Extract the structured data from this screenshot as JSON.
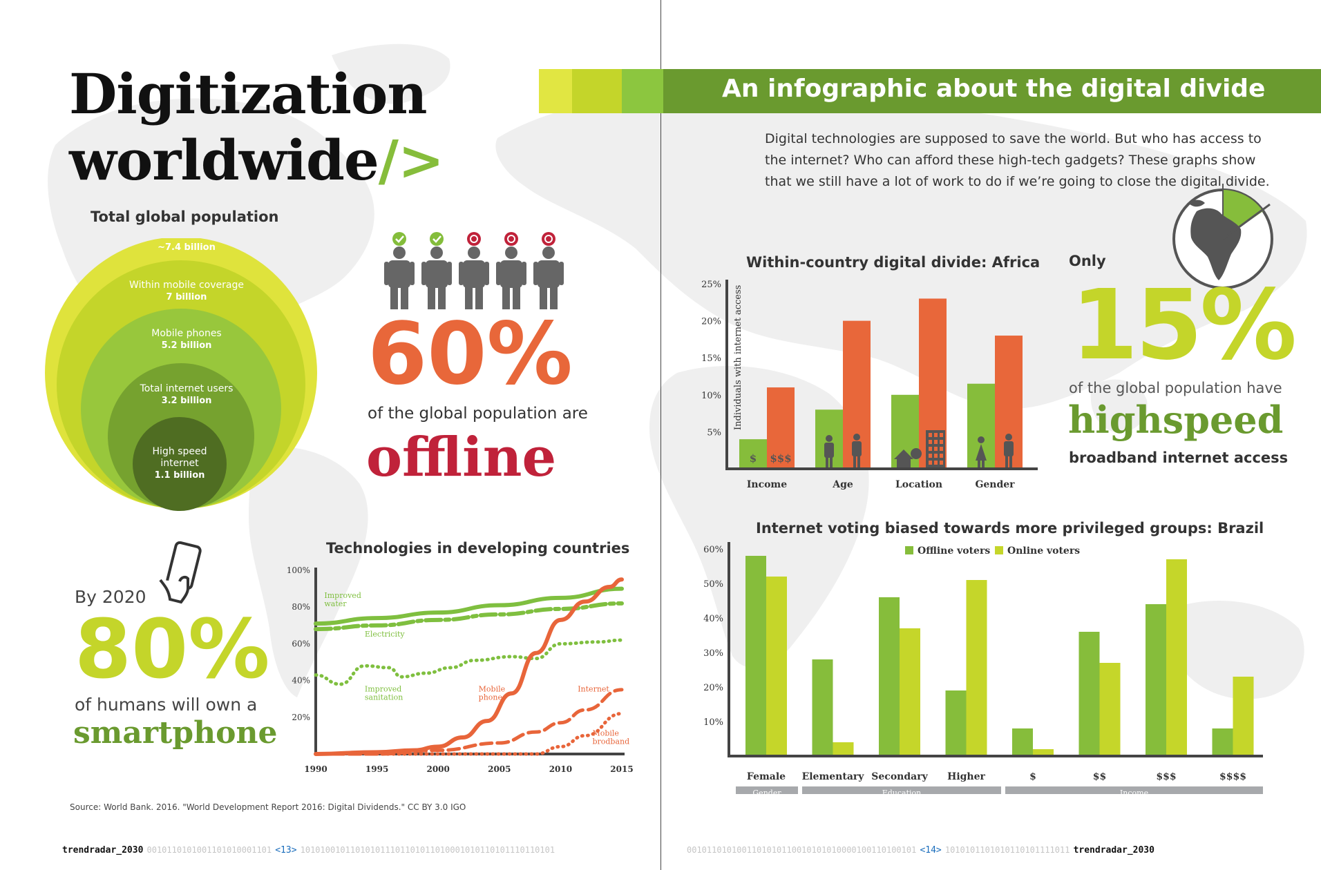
{
  "title_line1": "Digitization",
  "title_line2": "worldwide",
  "title_slash": "/>",
  "banner_title": "An infographic about the digital divide",
  "intro_text": "Digital technologies are supposed to save the world. But who has access to the internet? Who can afford these high-tech gadgets? These graphs show that we still have a lot of work to do if we’re going to close the digital divide.",
  "population": {
    "title": "Total global population",
    "rings": [
      {
        "label": "~7.4 billion",
        "value": ""
      },
      {
        "label": "Within mobile coverage",
        "value": "7 billion"
      },
      {
        "label": "Mobile phones",
        "value": "5.2 billion"
      },
      {
        "label": "Total internet users",
        "value": "3.2 billion"
      },
      {
        "label": "High speed internet",
        "value": "1.1 billion"
      }
    ],
    "colors": [
      "#dfe33c",
      "#c4d52a",
      "#98c73c",
      "#76a22f",
      "#4f6d22"
    ]
  },
  "offline": {
    "percent": "60%",
    "text": "of the global population are",
    "word": "offline"
  },
  "smartphone": {
    "by": "By 2020",
    "percent": "80%",
    "text": "of humans will own a",
    "word": "smartphone"
  },
  "broadband": {
    "only": "Only",
    "percent": "15%",
    "text": "of the global population have",
    "word": "highspeed",
    "sub": "broadband internet access"
  },
  "source": "Source: World Bank. 2016. \"World Development Report 2016: Digital Dividends.\" CC BY 3.0 IGO",
  "footer": {
    "left_brand": "trendradar_2030",
    "left_code1": "0010110101001101010001101",
    "left_page": "<13>",
    "left_code2": "101010010110101011101101011010001010110101110110101",
    "right_code1": "0010110101001101010110010101010000100110100101",
    "right_page": "<14>",
    "right_code2": "1010101101010110101111011",
    "right_brand": "trendradar_2030"
  },
  "chart_data": [
    {
      "type": "line",
      "title": "Technologies in developing countries",
      "x": [
        1990,
        1995,
        2000,
        2005,
        2010,
        2015
      ],
      "ylim": [
        0,
        100
      ],
      "y_ticks": [
        "20%",
        "40%",
        "60%",
        "80%",
        "100%"
      ],
      "series": [
        {
          "name": "Improved water",
          "color": "#7fbf3f",
          "style": "solid",
          "points": [
            [
              1990,
              71
            ],
            [
              1995,
              74
            ],
            [
              2000,
              77
            ],
            [
              2005,
              81
            ],
            [
              2010,
              85
            ],
            [
              2015,
              90
            ]
          ]
        },
        {
          "name": "Electricity",
          "color": "#7fbf3f",
          "style": "dashdot",
          "points": [
            [
              1990,
              68
            ],
            [
              1995,
              70
            ],
            [
              2000,
              73
            ],
            [
              2005,
              76
            ],
            [
              2010,
              79
            ],
            [
              2015,
              82
            ]
          ]
        },
        {
          "name": "Improved sanitation",
          "color": "#7fbf3f",
          "style": "dotted",
          "points": [
            [
              1990,
              43
            ],
            [
              1992,
              38
            ],
            [
              1994,
              48
            ],
            [
              1996,
              47
            ],
            [
              1997,
              42
            ],
            [
              1999,
              44
            ],
            [
              2001,
              47
            ],
            [
              2003,
              51
            ],
            [
              2006,
              53
            ],
            [
              2008,
              52
            ],
            [
              2010,
              60
            ],
            [
              2013,
              61
            ],
            [
              2015,
              62
            ]
          ]
        },
        {
          "name": "Mobile phone",
          "color": "#e8653a",
          "style": "solid",
          "points": [
            [
              1990,
              0
            ],
            [
              1995,
              1
            ],
            [
              1998,
              2
            ],
            [
              2000,
              4
            ],
            [
              2002,
              9
            ],
            [
              2004,
              18
            ],
            [
              2006,
              33
            ],
            [
              2008,
              55
            ],
            [
              2010,
              73
            ],
            [
              2012,
              83
            ],
            [
              2014,
              91
            ],
            [
              2015,
              95
            ]
          ]
        },
        {
          "name": "Internet",
          "color": "#e8653a",
          "style": "dashed",
          "points": [
            [
              1990,
              0
            ],
            [
              1995,
              0
            ],
            [
              2000,
              2
            ],
            [
              2005,
              6
            ],
            [
              2008,
              12
            ],
            [
              2010,
              17
            ],
            [
              2012,
              24
            ],
            [
              2015,
              35
            ]
          ]
        },
        {
          "name": "Mobile brodband",
          "color": "#e8653a",
          "style": "dotted",
          "points": [
            [
              1990,
              0
            ],
            [
              2005,
              0
            ],
            [
              2008,
              0
            ],
            [
              2010,
              4
            ],
            [
              2012,
              10
            ],
            [
              2015,
              22
            ]
          ]
        }
      ]
    },
    {
      "type": "bar",
      "title": "Within-country digital divide: Africa",
      "ylabel": "Individuals with internet access",
      "ylim": [
        0,
        25
      ],
      "y_ticks": [
        "5%",
        "10%",
        "15%",
        "20%",
        "25%"
      ],
      "categories": [
        "Income",
        "Age",
        "Location",
        "Gender"
      ],
      "series": [
        {
          "name": "",
          "color": "#86bd3b",
          "values": [
            4,
            8,
            10,
            11.5
          ]
        },
        {
          "name": "",
          "color": "#e8673a",
          "values": [
            11,
            20,
            23,
            18
          ]
        }
      ],
      "bar_labels": [
        "$",
        "$$$"
      ]
    },
    {
      "type": "bar",
      "title": "Internet voting biased towards more privileged groups: Brazil",
      "ylim": [
        0,
        60
      ],
      "y_ticks": [
        "10%",
        "20%",
        "30%",
        "40%",
        "50%",
        "60%"
      ],
      "legend": "top",
      "categories": [
        "Female",
        "Elementary",
        "Secondary",
        "Higher",
        "$",
        "$$",
        "$$$",
        "$$$$"
      ],
      "groups": [
        {
          "label": "Gender"
        },
        {
          "label": "Education"
        },
        {
          "label": "Income"
        }
      ],
      "series": [
        {
          "name": "Offline voters",
          "color": "#86bd3b",
          "values": [
            58,
            28,
            46,
            19,
            8,
            36,
            44,
            8
          ]
        },
        {
          "name": "Online voters",
          "color": "#c5d62a",
          "values": [
            52,
            4,
            37,
            51,
            2,
            27,
            57,
            23
          ]
        }
      ]
    }
  ]
}
